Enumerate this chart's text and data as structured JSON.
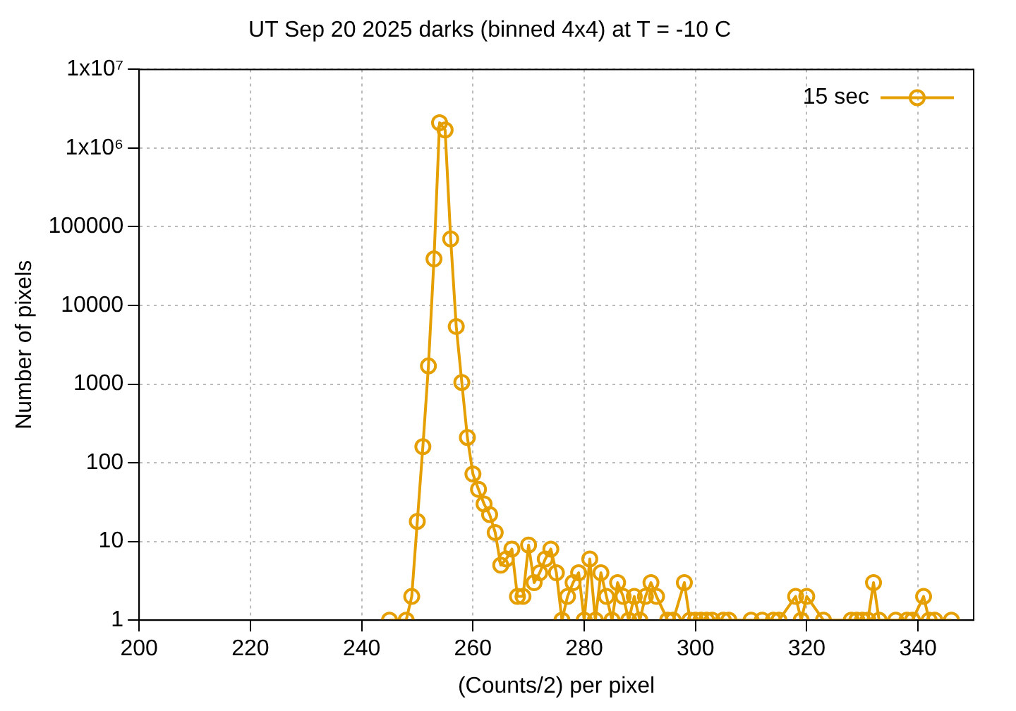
{
  "chart_data": {
    "type": "line",
    "title": "UT Sep 20 2025 darks (binned 4x4) at T = -10 C",
    "xlabel": "(Counts/2) per pixel",
    "ylabel": "Number of pixels",
    "log": "y",
    "grid": true,
    "legend": "top right",
    "marker": "circle",
    "line_style": "solid",
    "xlim": [
      200,
      350
    ],
    "xticks": [
      200,
      220,
      240,
      260,
      280,
      300,
      320,
      340
    ],
    "ylim": [
      1,
      10000000
    ],
    "yticks": [
      1,
      10,
      100,
      1000,
      10000,
      100000,
      {
        "value": 1000000,
        "label": "1x10⁶"
      },
      {
        "value": 10000000,
        "label": "1x10⁷"
      }
    ],
    "series": [
      {
        "name": "15 sec",
        "color": "#e69f00",
        "x": [
          245,
          248,
          249,
          250,
          251,
          252,
          253,
          254,
          255,
          256,
          257,
          258,
          259,
          260,
          261,
          262,
          263,
          264,
          265,
          266,
          267,
          268,
          269,
          270,
          271,
          272,
          273,
          274,
          275,
          276,
          277,
          278,
          279,
          280,
          281,
          282,
          283,
          284,
          285,
          286,
          287,
          288,
          289,
          290,
          291,
          292,
          293,
          295,
          296,
          298,
          299,
          300,
          301,
          302,
          303,
          305,
          306,
          310,
          312,
          314,
          315,
          318,
          319,
          320,
          323,
          328,
          329,
          330,
          331,
          332,
          333,
          336,
          338,
          339,
          341,
          342,
          343,
          346
        ],
        "values": [
          1,
          1,
          2,
          18,
          160,
          1700,
          39000,
          2100000,
          1700000,
          70000,
          5400,
          1050,
          210,
          72,
          46,
          30,
          22,
          13,
          5,
          6,
          8,
          2,
          2,
          9,
          3,
          4,
          6,
          8,
          4,
          1,
          2,
          3,
          4,
          1,
          6,
          1,
          4,
          2,
          1,
          3,
          2,
          1,
          2,
          1,
          2,
          3,
          2,
          1,
          1,
          3,
          1,
          1,
          1,
          1,
          1,
          1,
          1,
          1,
          1,
          1,
          1,
          2,
          1,
          2,
          1,
          1,
          1,
          1,
          1,
          3,
          1,
          1,
          1,
          1,
          2,
          1,
          1,
          1
        ]
      }
    ]
  }
}
